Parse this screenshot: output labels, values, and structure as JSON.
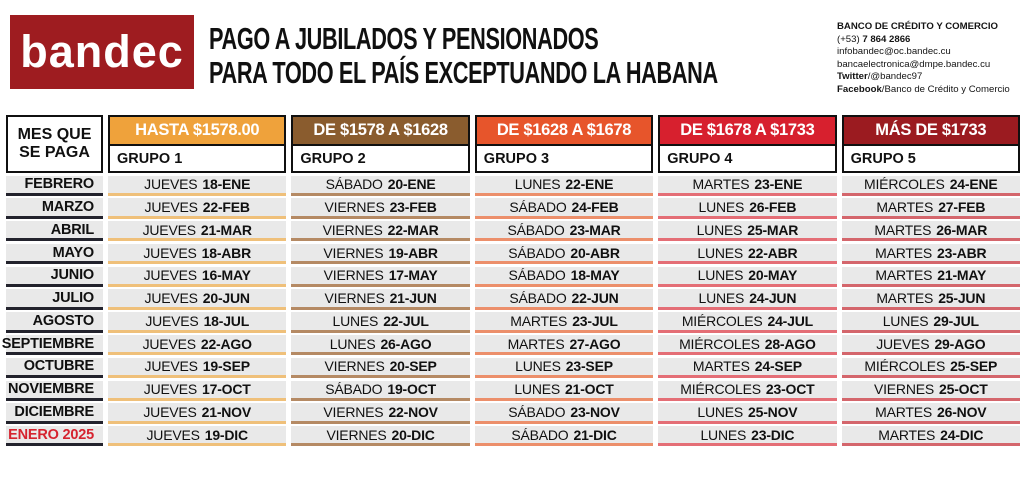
{
  "brand": {
    "logo_text": "bandec",
    "logo_bg": "#9E1C20"
  },
  "title": {
    "line1": "PAGO A JUBILADOS Y PENSIONADOS",
    "line2": "PARA TODO EL PAÍS EXCEPTUANDO LA HABANA"
  },
  "contact": {
    "name": "BANCO DE CRÉDITO Y COMERCIO",
    "phone_prefix": "(+53) ",
    "phone": "7 864 2866",
    "email1": "infobandec@oc.bandec.cu",
    "email2": "bancaelectronica@dmpe.bandec.cu",
    "twitter_label": "Twitter",
    "twitter_value": "/@bandec97",
    "facebook_label": "Facebook",
    "facebook_value": "/Banco de Crédito y Comercio"
  },
  "table": {
    "corner": {
      "line1": "MES QUE",
      "line2": "SE PAGA"
    },
    "month_line_color": "#23232D",
    "highlight_color": "#D6232F",
    "row_bg": "#E9E9E9",
    "columns": [
      {
        "range": "HASTA $1578.00",
        "group": "GRUPO 1",
        "color": "#EFA23B",
        "line_color": "#EFC07A"
      },
      {
        "range": "DE $1578 A $1628",
        "group": "GRUPO 2",
        "color": "#8A5C2E",
        "line_color": "#B58A64"
      },
      {
        "range": "DE $1628 A $1678",
        "group": "GRUPO 3",
        "color": "#E7552B",
        "line_color": "#EC8F6B"
      },
      {
        "range": "DE $1678 A $1733",
        "group": "GRUPO 4",
        "color": "#D7202E",
        "line_color": "#E46E76"
      },
      {
        "range": "MÁS DE $1733",
        "group": "GRUPO 5",
        "color": "#9B1B20",
        "line_color": "#D4666C"
      }
    ],
    "rows": [
      {
        "month": "FEBRERO",
        "highlight": false,
        "cells": [
          {
            "day": "JUEVES",
            "date": "18-ENE"
          },
          {
            "day": "SÁBADO",
            "date": "20-ENE"
          },
          {
            "day": "LUNES",
            "date": "22-ENE"
          },
          {
            "day": "MARTES",
            "date": "23-ENE"
          },
          {
            "day": "MIÉRCOLES",
            "date": "24-ENE"
          }
        ]
      },
      {
        "month": "MARZO",
        "highlight": false,
        "cells": [
          {
            "day": "JUEVES",
            "date": "22-FEB"
          },
          {
            "day": "VIERNES",
            "date": "23-FEB"
          },
          {
            "day": "SÁBADO",
            "date": "24-FEB"
          },
          {
            "day": "LUNES",
            "date": "26-FEB"
          },
          {
            "day": "MARTES",
            "date": "27-FEB"
          }
        ]
      },
      {
        "month": "ABRIL",
        "highlight": false,
        "cells": [
          {
            "day": "JUEVES",
            "date": "21-MAR"
          },
          {
            "day": "VIERNES",
            "date": "22-MAR"
          },
          {
            "day": "SÁBADO",
            "date": "23-MAR"
          },
          {
            "day": "LUNES",
            "date": "25-MAR"
          },
          {
            "day": "MARTES",
            "date": "26-MAR"
          }
        ]
      },
      {
        "month": "MAYO",
        "highlight": false,
        "cells": [
          {
            "day": "JUEVES",
            "date": "18-ABR"
          },
          {
            "day": "VIERNES",
            "date": "19-ABR"
          },
          {
            "day": "SÁBADO",
            "date": "20-ABR"
          },
          {
            "day": "LUNES",
            "date": "22-ABR"
          },
          {
            "day": "MARTES",
            "date": "23-ABR"
          }
        ]
      },
      {
        "month": "JUNIO",
        "highlight": false,
        "cells": [
          {
            "day": "JUEVES",
            "date": "16-MAY"
          },
          {
            "day": "VIERNES",
            "date": "17-MAY"
          },
          {
            "day": "SÁBADO",
            "date": "18-MAY"
          },
          {
            "day": "LUNES",
            "date": "20-MAY"
          },
          {
            "day": "MARTES",
            "date": "21-MAY"
          }
        ]
      },
      {
        "month": "JULIO",
        "highlight": false,
        "cells": [
          {
            "day": "JUEVES",
            "date": "20-JUN"
          },
          {
            "day": "VIERNES",
            "date": "21-JUN"
          },
          {
            "day": "SÁBADO",
            "date": "22-JUN"
          },
          {
            "day": "LUNES",
            "date": "24-JUN"
          },
          {
            "day": "MARTES",
            "date": "25-JUN"
          }
        ]
      },
      {
        "month": "AGOSTO",
        "highlight": false,
        "cells": [
          {
            "day": "JUEVES",
            "date": "18-JUL"
          },
          {
            "day": "LUNES",
            "date": "22-JUL"
          },
          {
            "day": "MARTES",
            "date": "23-JUL"
          },
          {
            "day": "MIÉRCOLES",
            "date": "24-JUL"
          },
          {
            "day": "LUNES",
            "date": "29-JUL"
          }
        ]
      },
      {
        "month": "SEPTIEMBRE",
        "highlight": false,
        "cells": [
          {
            "day": "JUEVES",
            "date": "22-AGO"
          },
          {
            "day": "LUNES",
            "date": "26-AGO"
          },
          {
            "day": "MARTES",
            "date": "27-AGO"
          },
          {
            "day": "MIÉRCOLES",
            "date": "28-AGO"
          },
          {
            "day": "JUEVES",
            "date": "29-AGO"
          }
        ]
      },
      {
        "month": "OCTUBRE",
        "highlight": false,
        "cells": [
          {
            "day": "JUEVES",
            "date": "19-SEP"
          },
          {
            "day": "VIERNES",
            "date": "20-SEP"
          },
          {
            "day": "LUNES",
            "date": "23-SEP"
          },
          {
            "day": "MARTES",
            "date": "24-SEP"
          },
          {
            "day": "MIÉRCOLES",
            "date": "25-SEP"
          }
        ]
      },
      {
        "month": "NOVIEMBRE",
        "highlight": false,
        "cells": [
          {
            "day": "JUEVES",
            "date": "17-OCT"
          },
          {
            "day": "SÁBADO",
            "date": "19-OCT"
          },
          {
            "day": "LUNES",
            "date": "21-OCT"
          },
          {
            "day": "MIÉRCOLES",
            "date": "23-OCT"
          },
          {
            "day": "VIERNES",
            "date": "25-OCT"
          }
        ]
      },
      {
        "month": "DICIEMBRE",
        "highlight": false,
        "cells": [
          {
            "day": "JUEVES",
            "date": "21-NOV"
          },
          {
            "day": "VIERNES",
            "date": "22-NOV"
          },
          {
            "day": "SÁBADO",
            "date": "23-NOV"
          },
          {
            "day": "LUNES",
            "date": "25-NOV"
          },
          {
            "day": "MARTES",
            "date": "26-NOV"
          }
        ]
      },
      {
        "month": "ENERO 2025",
        "highlight": true,
        "cells": [
          {
            "day": "JUEVES",
            "date": "19-DIC"
          },
          {
            "day": "VIERNES",
            "date": "20-DIC"
          },
          {
            "day": "SÁBADO",
            "date": "21-DIC"
          },
          {
            "day": "LUNES",
            "date": "23-DIC"
          },
          {
            "day": "MARTES",
            "date": "24-DIC"
          }
        ]
      }
    ]
  }
}
